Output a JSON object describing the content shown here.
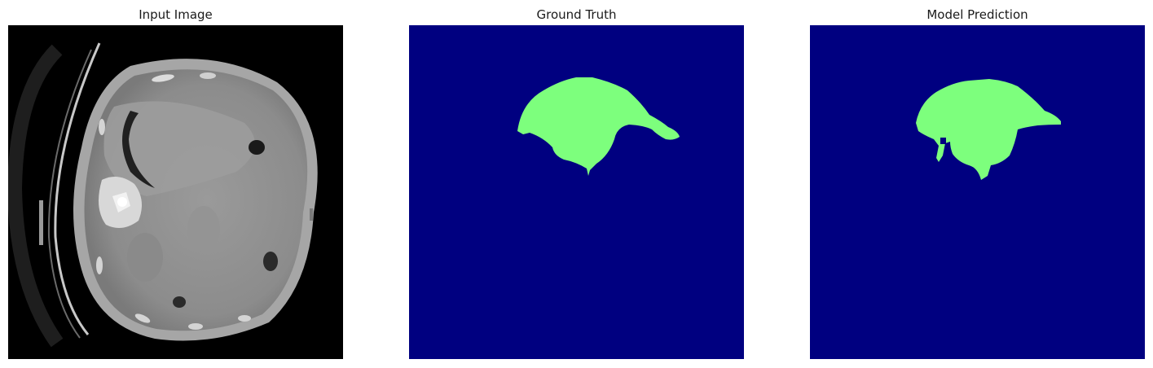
{
  "panels": [
    {
      "title": "Input Image"
    },
    {
      "title": "Ground Truth"
    },
    {
      "title": "Model Prediction"
    }
  ],
  "colors": {
    "mask_background": "#000080",
    "mask_foreground": "#7dff7d",
    "ct_background": "#000000"
  }
}
